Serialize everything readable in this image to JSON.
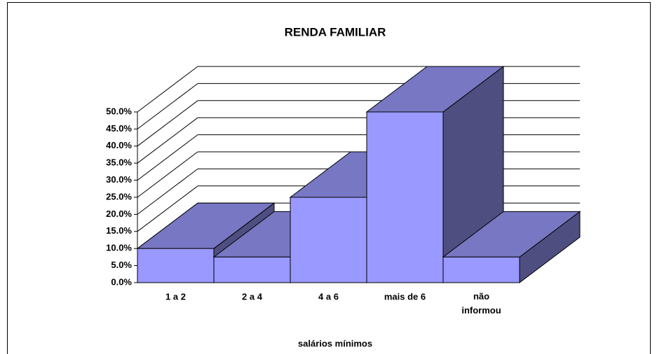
{
  "chart_data": {
    "type": "bar3d",
    "title": "RENDA FAMILIAR",
    "x_label": "salários mínimos",
    "categories": [
      "1 a 2",
      "2 a 4",
      "4 a 6",
      "mais de 6",
      "não informou"
    ],
    "values": [
      10,
      7.5,
      25,
      50,
      7.5
    ],
    "colors": {
      "front": "#9999ff",
      "top": "#7777c4",
      "side": "#4e4e80"
    },
    "ylim": [
      0,
      50
    ],
    "yticks": [
      {
        "value": 0,
        "label": "0.0%"
      },
      {
        "value": 5,
        "label": "5.0%"
      },
      {
        "value": 10,
        "label": "10.0%"
      },
      {
        "value": 15,
        "label": "15.0%"
      },
      {
        "value": 20,
        "label": "20.0%"
      },
      {
        "value": 25,
        "label": "25.0%"
      },
      {
        "value": 30,
        "label": "30.0%"
      },
      {
        "value": 35,
        "label": "35.0%"
      },
      {
        "value": 40,
        "label": "40.0%"
      },
      {
        "value": 45,
        "label": "45.0%"
      },
      {
        "value": 50,
        "label": "50.0%"
      }
    ],
    "grid": true
  }
}
